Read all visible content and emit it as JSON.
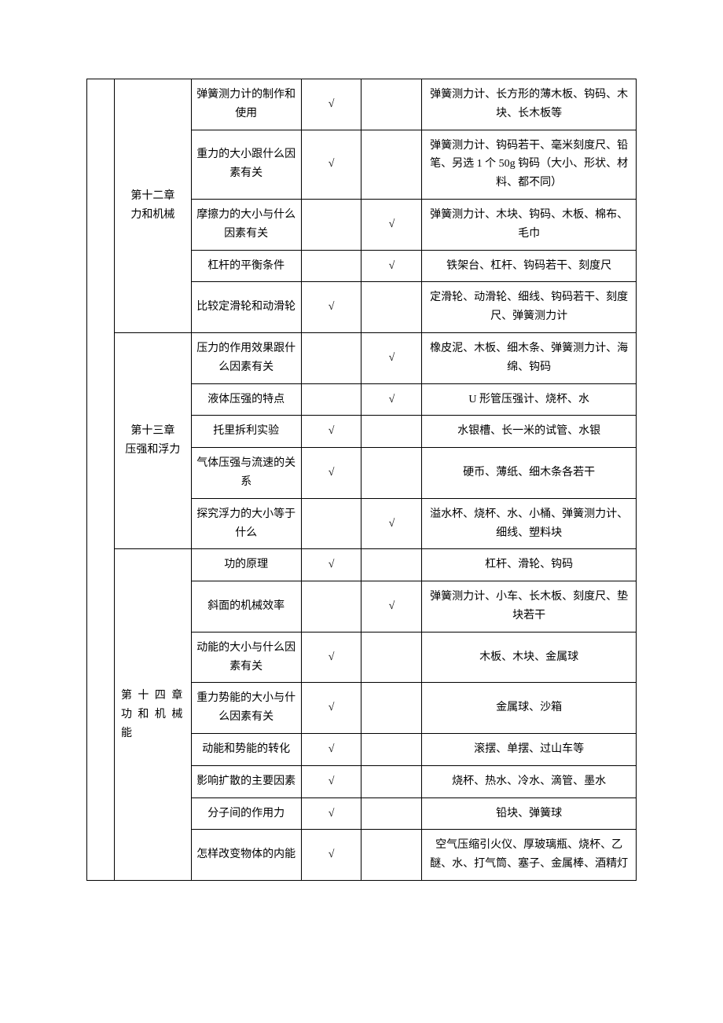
{
  "check": "√",
  "sections": [
    {
      "chapter_title": "第十二章\n力和机械",
      "rows": [
        {
          "experiment": "弹簧测力计的制作和使用",
          "col1": true,
          "col2": false,
          "equipment": "弹簧测力计、长方形的薄木板、钩码、木块、长木板等"
        },
        {
          "experiment": "重力的大小跟什么因素有关",
          "col1": true,
          "col2": false,
          "equipment": "弹簧测力计、钩码若干、毫米刻度尺、铅笔、另选 1 个 50g 钩码（大小、形状、材料、都不同）"
        },
        {
          "experiment": "摩擦力的大小与什么因素有关",
          "col1": false,
          "col2": true,
          "equipment": "弹簧测力计、木块、钩码、木板、棉布、毛巾"
        },
        {
          "experiment": "杠杆的平衡条件",
          "col1": false,
          "col2": true,
          "equipment": "铁架台、杠杆、钩码若干、刻度尺"
        },
        {
          "experiment": "比较定滑轮和动滑轮",
          "col1": true,
          "col2": false,
          "equipment": "定滑轮、动滑轮、细线、钩码若干、刻度尺、弹簧测力计"
        }
      ]
    },
    {
      "chapter_title": "第十三章\n压强和浮力",
      "rows": [
        {
          "experiment": "压力的作用效果跟什么因素有关",
          "col1": false,
          "col2": true,
          "equipment": "橡皮泥、木板、细木条、弹簧测力计、海绵、钩码"
        },
        {
          "experiment": "液体压强的特点",
          "col1": false,
          "col2": true,
          "equipment": "U 形管压强计、烧杯、水"
        },
        {
          "experiment": "托里拆利实验",
          "col1": true,
          "col2": false,
          "equipment": "水银槽、长一米的试管、水银"
        },
        {
          "experiment": "气体压强与流速的关系",
          "col1": true,
          "col2": false,
          "equipment": "硬币、薄纸、细木条各若干"
        },
        {
          "experiment": "探究浮力的大小等于什么",
          "col1": false,
          "col2": true,
          "equipment": "溢水杯、烧杯、水、小桶、弹簧测力计、细线、塑料块"
        }
      ]
    },
    {
      "chapter_title": "第 十 四 章\n功 和 机 械能",
      "chapter_class": "ch14",
      "rows": [
        {
          "experiment": "功的原理",
          "col1": true,
          "col2": false,
          "equipment": "杠杆、滑轮、钩码"
        },
        {
          "experiment": "斜面的机械效率",
          "col1": false,
          "col2": true,
          "equipment": "弹簧测力计、小车、长木板、刻度尺、垫块若干"
        },
        {
          "experiment": "动能的大小与什么因素有关",
          "col1": true,
          "col2": false,
          "equipment": "木板、木块、金属球"
        },
        {
          "experiment": "重力势能的大小与什么因素有关",
          "col1": true,
          "col2": false,
          "equipment": "金属球、沙箱"
        },
        {
          "experiment": "动能和势能的转化",
          "col1": true,
          "col2": false,
          "equipment": "滚摆、单摆、过山车等"
        },
        {
          "experiment": "影响扩散的主要因素",
          "col1": true,
          "col2": false,
          "equipment": "烧杯、热水、冷水、滴管、墨水"
        },
        {
          "experiment": "分子间的作用力",
          "col1": true,
          "col2": false,
          "equipment": "铅块、弹簧球"
        },
        {
          "experiment": "怎样改变物体的内能",
          "col1": true,
          "col2": false,
          "equipment": "空气压缩引火仪、厚玻璃瓶、烧杯、乙醚、水、打气筒、塞子、金属棒、酒精灯"
        }
      ]
    }
  ]
}
